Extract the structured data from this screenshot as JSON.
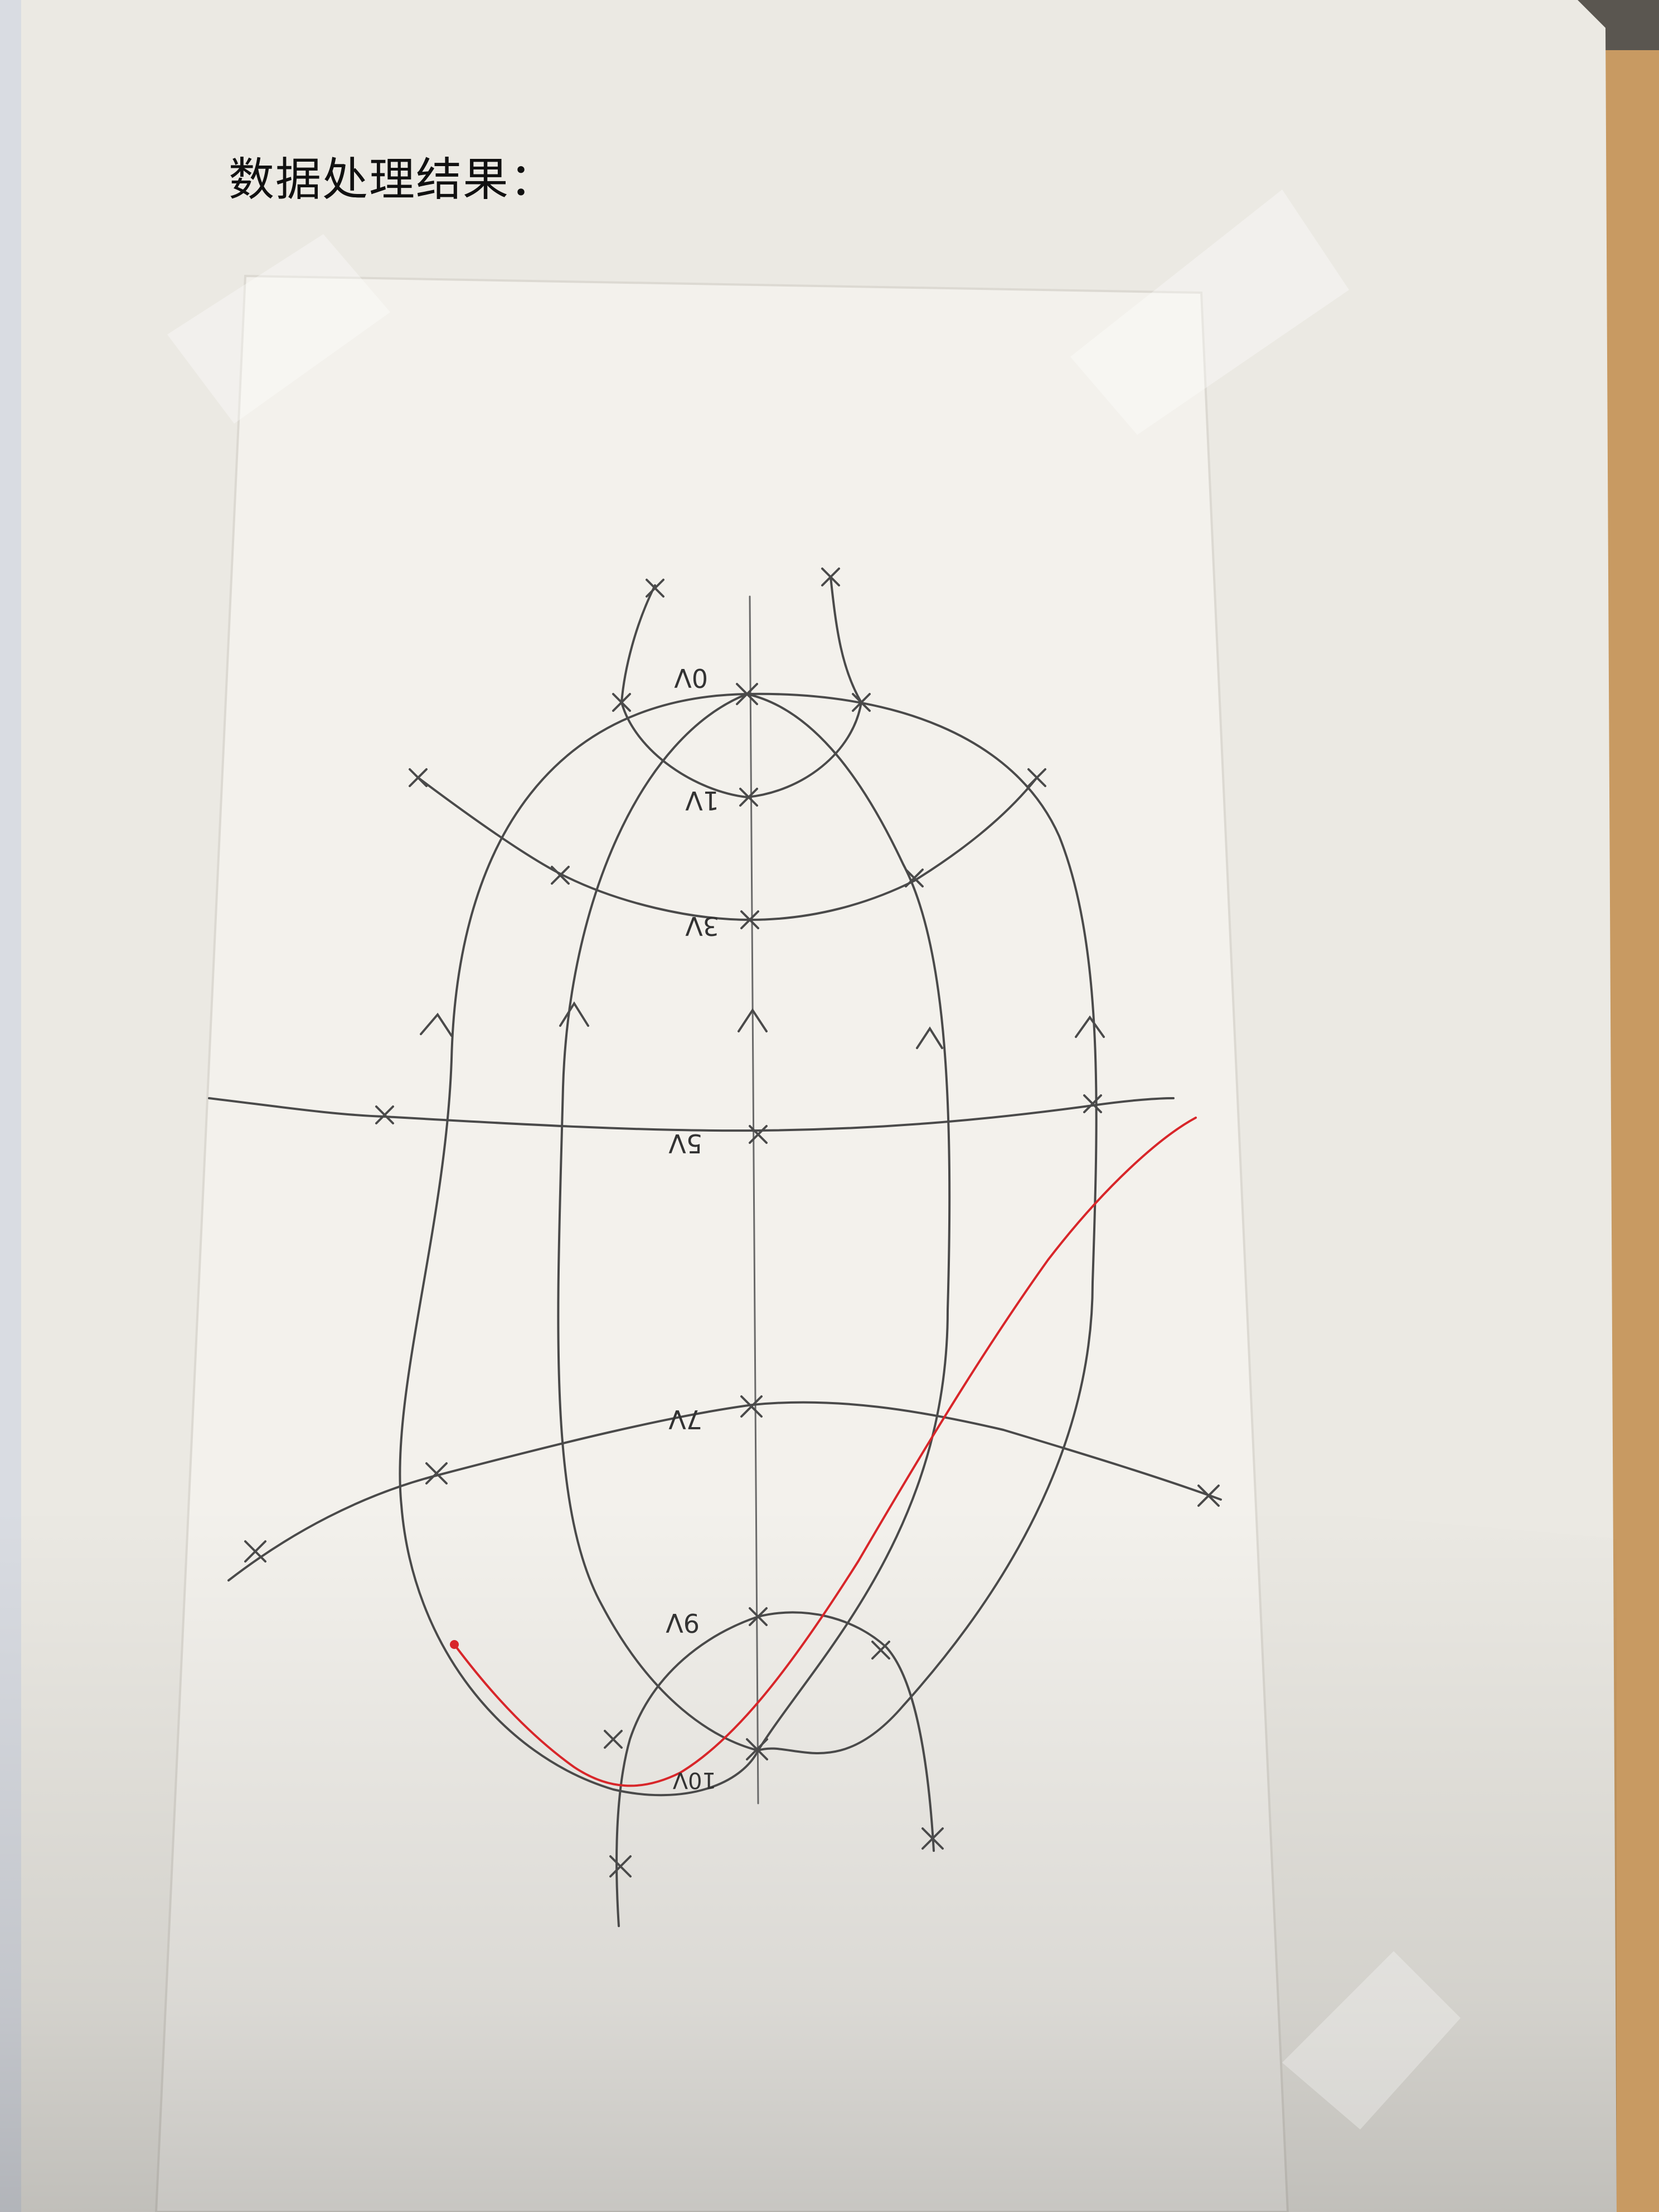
{
  "document": {
    "heading": "数据处理结果："
  },
  "sketch": {
    "labels": {
      "v0": "0V",
      "v1": "1V",
      "v3": "3V",
      "v5": "5V",
      "v7": "7V",
      "v9": "9V",
      "v10": "10V"
    }
  },
  "colors": {
    "pencil": "#4a4a4a",
    "red_curve": "#d8262a",
    "paper": "#f3f1ec",
    "sheet": "#ebe9e3",
    "desk": "#c89a62"
  }
}
